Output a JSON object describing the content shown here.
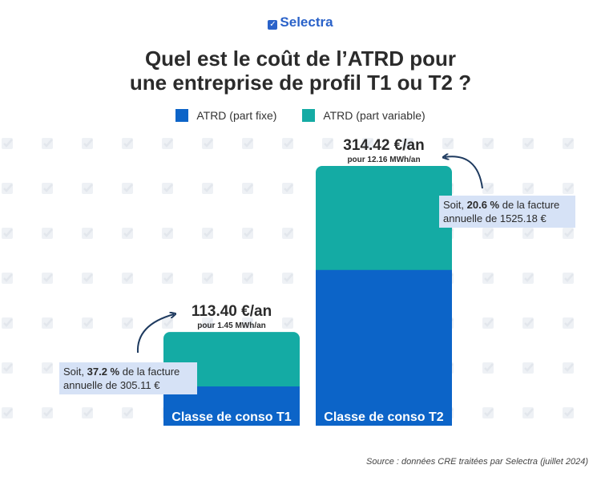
{
  "header": {
    "logo_text": "Selectra",
    "title_line1": "Quel est le coût de l’ATRD pour",
    "title_line2": "une entreprise de profil T1 ou T2 ?"
  },
  "colors": {
    "fixe": "#0c64c8",
    "variable": "#14aba4",
    "annotation_bg": "#d6e2f6",
    "arrow": "#1e3a5f",
    "pattern": "#eef1f5"
  },
  "chart_data": {
    "type": "bar",
    "stacked": true,
    "categories": [
      "Classe de conso T1",
      "Classe de conso T2"
    ],
    "series": [
      {
        "name": "ATRD (part fixe)",
        "color": "#0c64c8",
        "values": [
          47.5,
          188.5
        ]
      },
      {
        "name": "ATRD (part variable)",
        "color": "#14aba4",
        "values": [
          65.9,
          125.92
        ]
      }
    ],
    "totals_labels": [
      "113.40 €/an",
      "314.42 €/an"
    ],
    "volume_labels": [
      "pour 1.45 MWh/an",
      "pour 12.16 MWh/an"
    ],
    "annotations": [
      {
        "prefix": "Soit, ",
        "pct": "37.2 %",
        "suffix": " de la facture",
        "line2": "annuelle de 305.11 €"
      },
      {
        "prefix": "Soit, ",
        "pct": "20.6 %",
        "suffix": " de la facture",
        "line2": "annuelle de 1525.18 €"
      }
    ],
    "legend_position": "top",
    "ylim": [
      0,
      314.42
    ],
    "grid": false
  },
  "source": "Source : données CRE traitées par Selectra (juillet 2024)"
}
